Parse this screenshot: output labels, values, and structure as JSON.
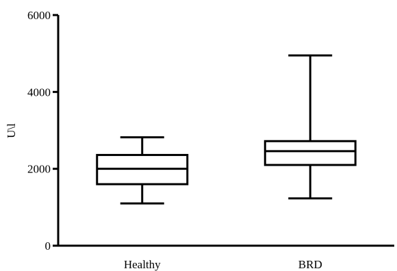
{
  "chart_data": {
    "type": "boxplot",
    "title": "",
    "xlabel": "",
    "ylabel": "U\\l",
    "ylim": [
      0,
      6000
    ],
    "yticks": [
      0,
      2000,
      4000,
      6000
    ],
    "grid": false,
    "categories": [
      "Healthy",
      "BRD"
    ],
    "boxes": [
      {
        "category": "Healthy",
        "min": 1100,
        "q1": 1600,
        "median": 2000,
        "q3": 2360,
        "max": 2820
      },
      {
        "category": "BRD",
        "min": 1230,
        "q1": 2100,
        "median": 2460,
        "q3": 2720,
        "max": 4950
      }
    ]
  }
}
